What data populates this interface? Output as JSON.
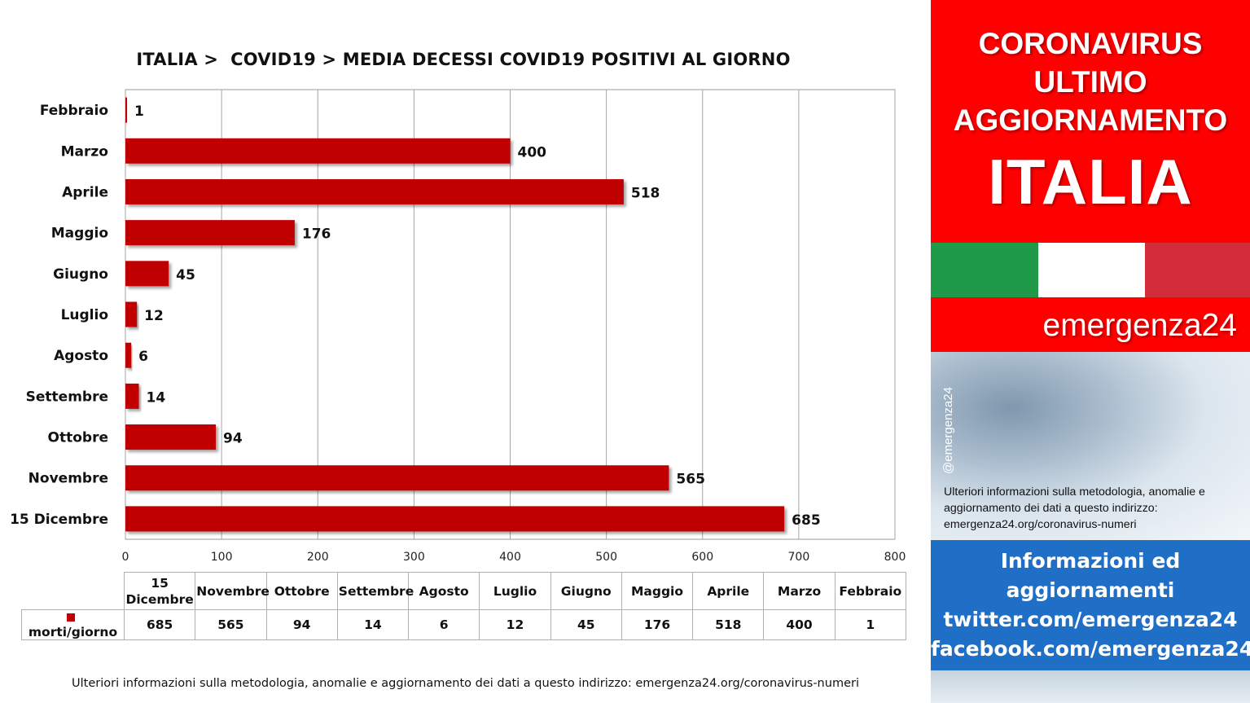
{
  "chart_data": {
    "type": "bar",
    "orientation": "horizontal",
    "title": "ITALIA >  COVID19 > MEDIA DECESSI COVID19 POSITIVI AL GIORNO",
    "categories": [
      "Febbraio",
      "Marzo",
      "Aprile",
      "Maggio",
      "Giugno",
      "Luglio",
      "Agosto",
      "Settembre",
      "Ottobre",
      "Novembre",
      "15 Dicembre"
    ],
    "series": [
      {
        "name": "morti/giorno",
        "values": [
          1,
          400,
          518,
          176,
          45,
          12,
          6,
          14,
          94,
          565,
          685
        ],
        "color": "#c00000"
      }
    ],
    "xlim": [
      0,
      800
    ],
    "x_ticks": [
      0,
      100,
      200,
      300,
      400,
      500,
      600,
      700,
      800
    ],
    "grid": "vertical",
    "data_labels": true,
    "data_table": {
      "headers": [
        "15 Dicembre",
        "Novembre",
        "Ottobre",
        "Settembre",
        "Agosto",
        "Luglio",
        "Giugno",
        "Maggio",
        "Aprile",
        "Marzo",
        "Febbraio"
      ],
      "series_label": "morti/giorno",
      "values": [
        685,
        565,
        94,
        14,
        6,
        12,
        45,
        176,
        518,
        400,
        1
      ]
    }
  },
  "footnote": "Ulteriori informazioni sulla metodologia, anomalie e aggiornamento dei dati a questo indirizzo: emergenza24.org/coronavirus-numeri",
  "side": {
    "heading_lines": [
      "CORONAVIRUS",
      "ULTIMO",
      "AGGIORNAMENTO"
    ],
    "country": "ITALIA",
    "brand": "emergenza24",
    "handle": "@emergenza24",
    "note": "Ulteriori informazioni sulla metodologia, anomalie e aggiornamento dei dati a questo indirizzo: emergenza24.org/coronavirus-numeri",
    "info_lines": [
      "Informazioni ed",
      "aggiornamenti",
      "twitter.com/emergenza24",
      "facebook.com/emergenza24"
    ],
    "colors": {
      "red": "#ff0000",
      "blue": "#1f6fc6",
      "flag_green": "#1e9a48",
      "flag_white": "#ffffff",
      "flag_red": "#d32d3c"
    }
  }
}
